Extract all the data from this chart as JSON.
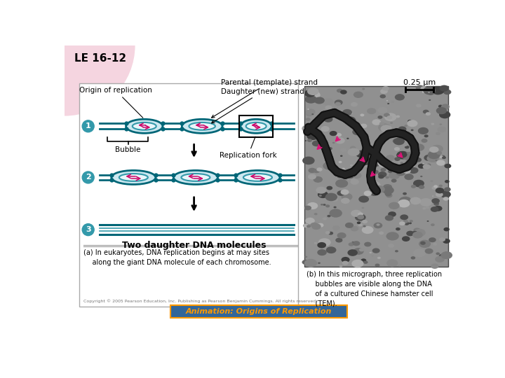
{
  "title": "LE 16-12",
  "bg_color": "#ffffff",
  "pink_bg": "#f5d5e0",
  "teal_color": "#3399aa",
  "dark_teal": "#006677",
  "magenta": "#cc0066",
  "label_circle_color": "#3399aa",
  "animation_bg": "#336699",
  "animation_text": "#ff9900",
  "scale_bar_text": "0.25 µm",
  "parental_label": "Parental (template) strand",
  "daughter_label": "Daughter (new) strand",
  "origin_label": "Origin of replication",
  "bubble_label": "Bubble",
  "repfork_label": "Replication fork",
  "two_daughter_label": "Two daughter DNA molecules",
  "caption_a": "(a) In eukaryotes, DNA replication begins at may sites\n    along the giant DNA molecule of each chromosome.",
  "caption_b": "(b) In this micrograph, three replication\n    bubbles are visible along the DNA\n    of a cultured Chinese hamster cell\n    (TEM).",
  "animation_label": "Animation: Origins of Replication",
  "copyright": "Copyright © 2005 Pearson Education, Inc. Publishing as Pearson Benjamin Cummings. All rights reserved."
}
